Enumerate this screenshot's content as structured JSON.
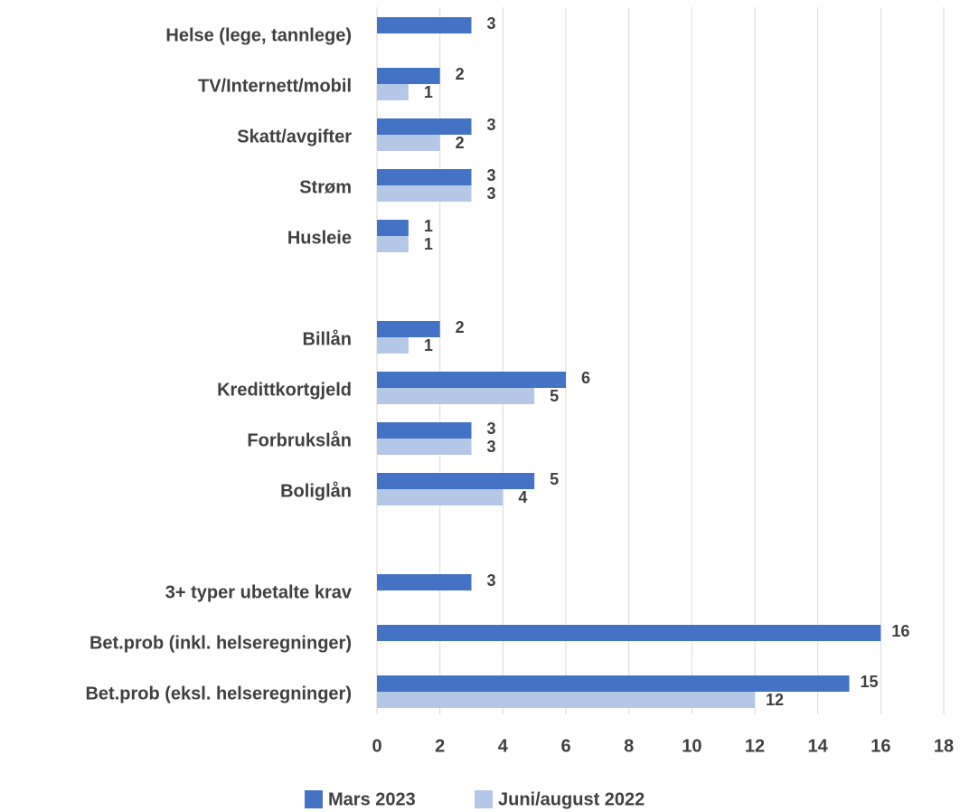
{
  "chart_data": {
    "type": "hbar",
    "categories": [
      "Helse (lege, tannlege)",
      "TV/Internett/mobil",
      "Skatt/avgifter",
      "Strøm",
      "Husleie",
      null,
      "Billån",
      "Kredittkortgjeld",
      "Forbrukslån",
      "Boliglån",
      null,
      "3+ typer ubetalte krav",
      "Bet.prob (inkl. helseregninger)",
      "Bet.prob (eksl. helseregninger)"
    ],
    "series": [
      {
        "name": "Mars 2023",
        "color": "#4472c4",
        "values": [
          3,
          2,
          3,
          3,
          1,
          null,
          2,
          6,
          3,
          5,
          null,
          3,
          16,
          15
        ]
      },
      {
        "name": "Juni/august 2022",
        "color": "#b4c7e7",
        "values": [
          null,
          1,
          2,
          3,
          1,
          null,
          1,
          5,
          3,
          4,
          null,
          null,
          null,
          12
        ]
      }
    ],
    "xlim": [
      0,
      18
    ],
    "xticks": [
      0,
      2,
      4,
      6,
      8,
      10,
      12,
      14,
      16,
      18
    ],
    "grid": true,
    "legend": "bottom"
  }
}
